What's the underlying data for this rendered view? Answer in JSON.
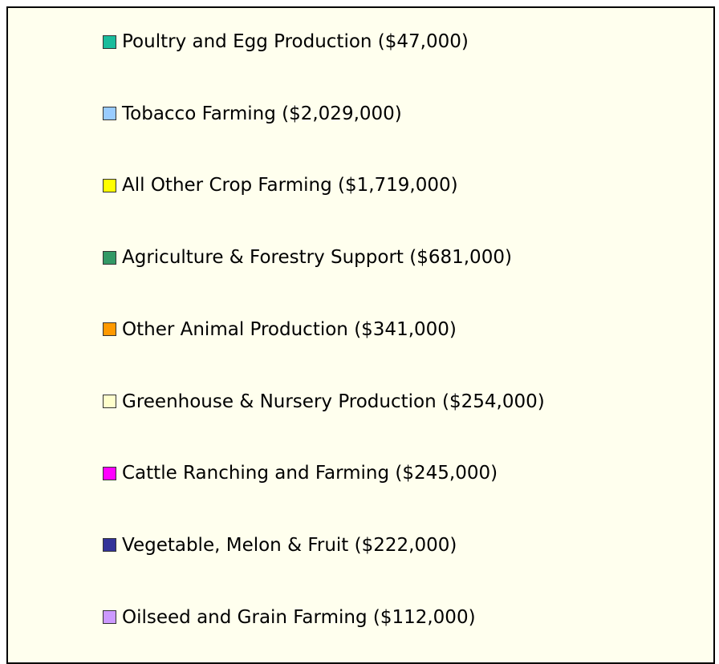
{
  "legend": {
    "items": [
      {
        "label": "Poultry and Egg Production ($47,000)",
        "color": "#1abc9c"
      },
      {
        "label": "Tobacco Farming ($2,029,000)",
        "color": "#99ccff"
      },
      {
        "label": "All Other Crop Farming ($1,719,000)",
        "color": "#ffff00"
      },
      {
        "label": "Agriculture & Forestry Support ($681,000)",
        "color": "#339966"
      },
      {
        "label": "Other Animal Production ($341,000)",
        "color": "#ff9900"
      },
      {
        "label": "Greenhouse & Nursery Production ($254,000)",
        "color": "#ffffcc"
      },
      {
        "label": "Cattle Ranching and Farming ($245,000)",
        "color": "#ff00ff"
      },
      {
        "label": "Vegetable, Melon & Fruit ($222,000)",
        "color": "#333399"
      },
      {
        "label": "Oilseed and Grain Farming ($112,000)",
        "color": "#cc99ff"
      }
    ]
  }
}
